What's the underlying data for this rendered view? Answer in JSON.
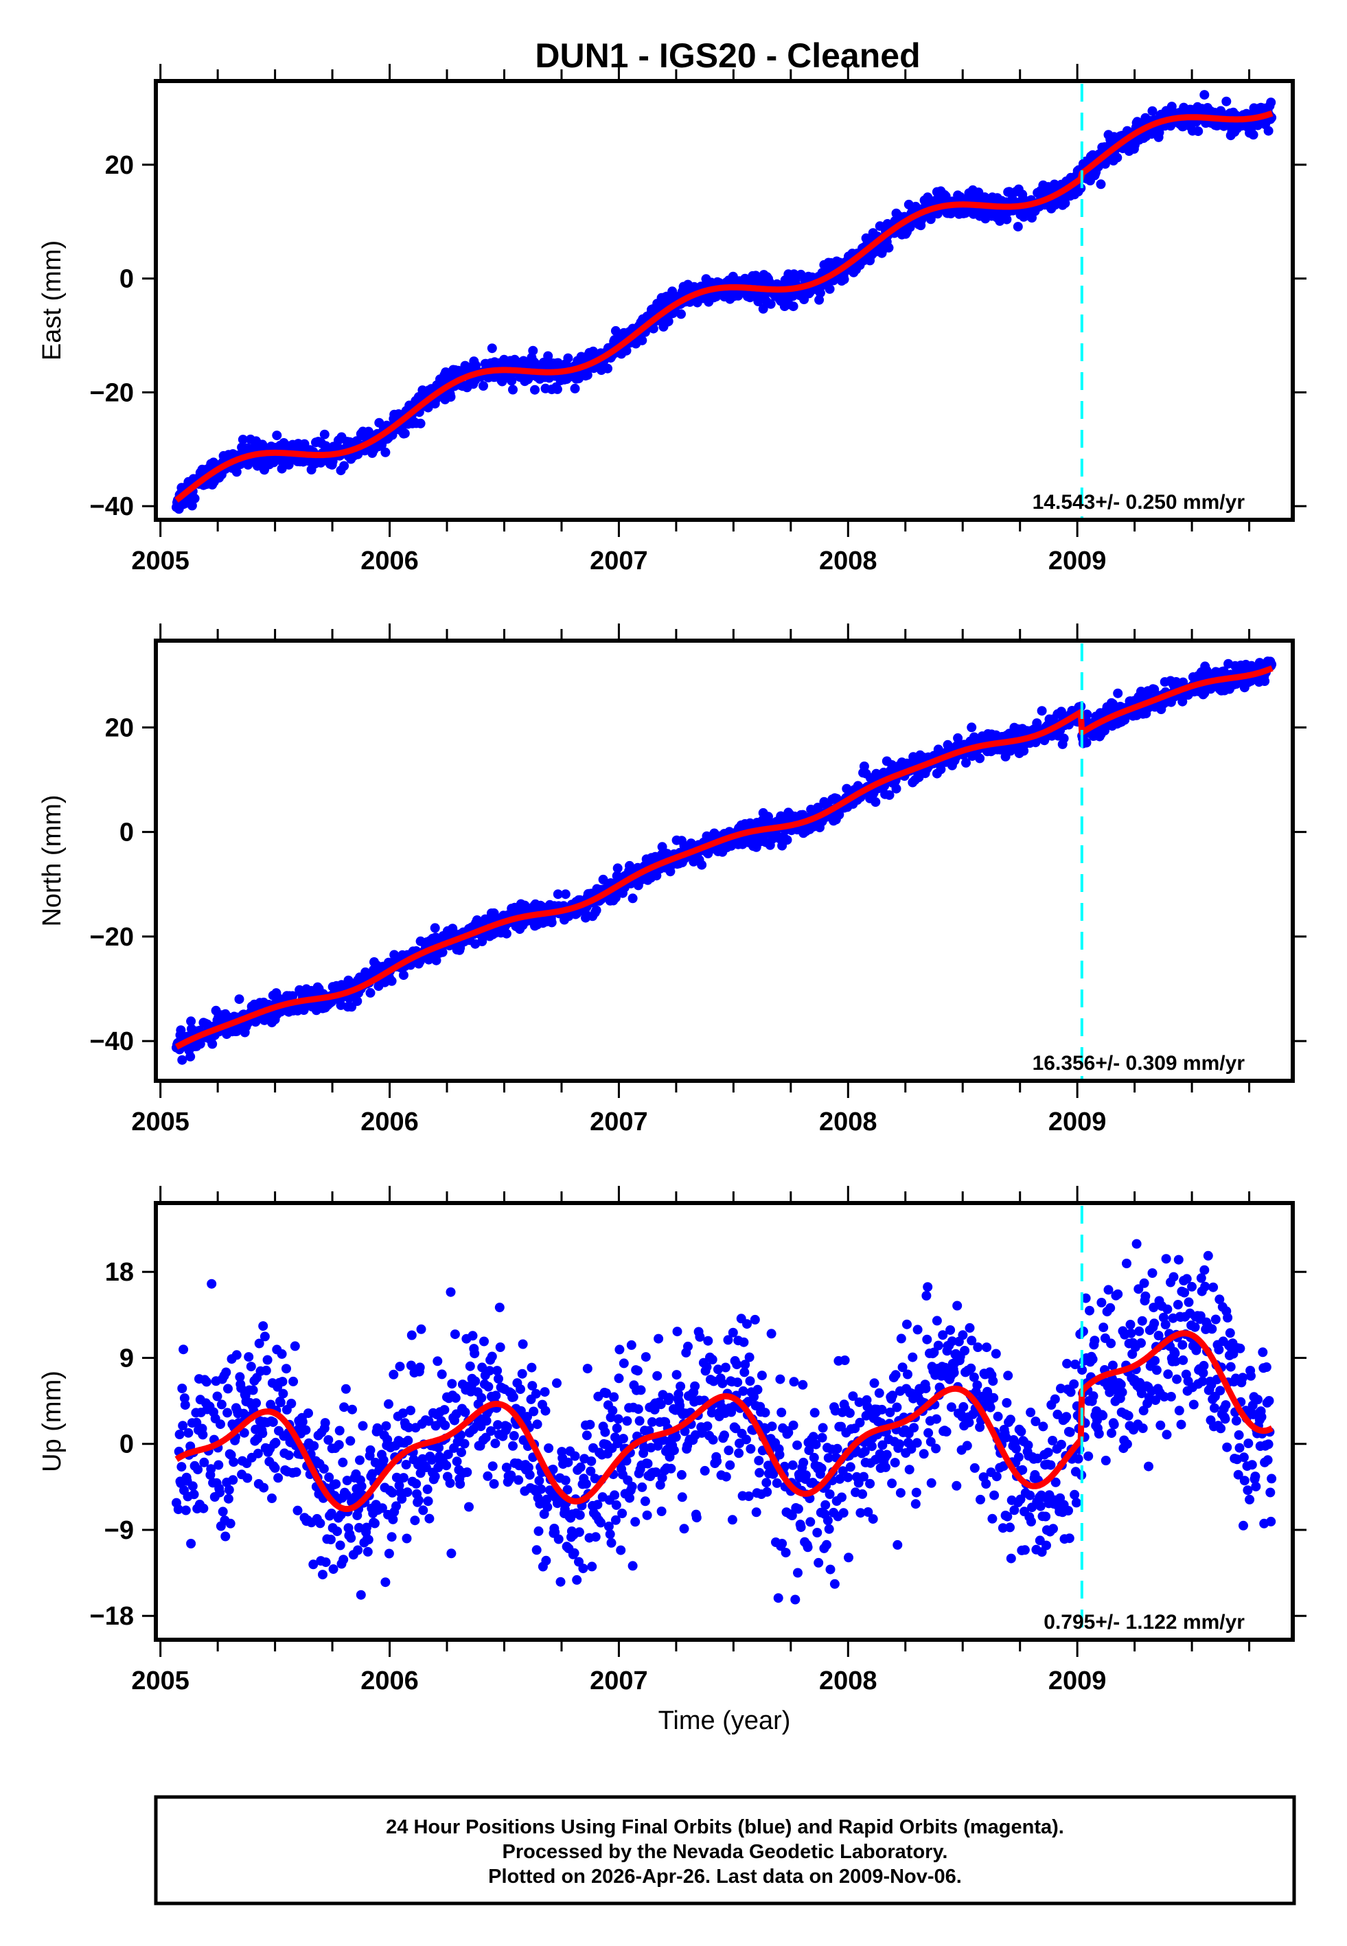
{
  "title": "DUN1  - IGS20 - Cleaned",
  "footer": {
    "lines": [
      "24 Hour Positions Using Final Orbits (blue) and Rapid Orbits (magenta).",
      "Processed by the Nevada Geodetic Laboratory.",
      "Plotted on 2026-Apr-26. Last data on 2009-Nov-06."
    ]
  },
  "colors": {
    "points": "#0000ff",
    "fit": "#ff0000",
    "event_line": "#00ffff",
    "frame": "#000000"
  },
  "chart_data": [
    {
      "type": "scatter",
      "name": "east",
      "ylabel": "East (mm)",
      "xlabel": "",
      "xlim": [
        2004.98,
        2009.94
      ],
      "ylim": [
        -42.4,
        34.7
      ],
      "xticks": [
        2005,
        2006,
        2007,
        2008,
        2009
      ],
      "xtick_labels": [
        "2005",
        "2006",
        "2007",
        "2008",
        "2009"
      ],
      "yticks": [
        -40,
        -20,
        0,
        20
      ],
      "ytick_labels": [
        "−40",
        "−20",
        "0",
        "20"
      ],
      "rate_text": "14.543+/- 0.250 mm/yr",
      "event_lines": [
        2009.02
      ],
      "data_range": [
        2005.07,
        2009.85
      ],
      "model": {
        "intercept_2005": -39.5,
        "rate": 14.543,
        "annual_sin": 2.3,
        "annual_cos": -1.6,
        "semi_sin": 0,
        "semi_cos": 0,
        "offsets": [
          {
            "t": 2009.02,
            "size": 0.8
          }
        ],
        "noise": 1.2
      },
      "fit_label": "fit"
    },
    {
      "type": "scatter",
      "name": "north",
      "ylabel": "North (mm)",
      "xlabel": "",
      "xlim": [
        2004.98,
        2009.94
      ],
      "ylim": [
        -47.6,
        36.6
      ],
      "xticks": [
        2005,
        2006,
        2007,
        2008,
        2009
      ],
      "xtick_labels": [
        "2005",
        "2006",
        "2007",
        "2008",
        "2009"
      ],
      "yticks": [
        -40,
        -20,
        0,
        20
      ],
      "ytick_labels": [
        "−40",
        "−20",
        "0",
        "20"
      ],
      "rate_text": "16.356+/- 0.309 mm/yr",
      "event_lines": [
        2009.02
      ],
      "data_range": [
        2005.07,
        2009.85
      ],
      "model": {
        "intercept_2005": -42.5,
        "rate": 16.356,
        "annual_sin": 1.0,
        "annual_cos": -0.6,
        "semi_sin": 0.3,
        "semi_cos": 0.2,
        "offsets": [
          {
            "t": 2009.02,
            "size": -4.0
          }
        ],
        "noise": 1.2
      },
      "fit_label": "fit"
    },
    {
      "type": "scatter",
      "name": "up",
      "ylabel": "Up (mm)",
      "xlabel": "Time (year)",
      "xlim": [
        2004.98,
        2009.94
      ],
      "ylim": [
        -20.5,
        25.2
      ],
      "xticks": [
        2005,
        2006,
        2007,
        2008,
        2009
      ],
      "xtick_labels": [
        "2005",
        "2006",
        "2007",
        "2008",
        "2009"
      ],
      "yticks": [
        -18,
        -9,
        0,
        9,
        18
      ],
      "ytick_labels": [
        "−18",
        "−9",
        "0",
        "9",
        "18"
      ],
      "rate_text": "0.795+/- 1.122 mm/yr",
      "event_lines": [
        2009.02
      ],
      "data_range": [
        2005.07,
        2009.85
      ],
      "model": {
        "intercept_2005": -1.8,
        "rate": 0.795,
        "annual_sin": 3.2,
        "annual_cos": -3.0,
        "semi_sin": 0.6,
        "semi_cos": 1.6,
        "offsets": [
          {
            "t": 2009.02,
            "size": 5.0
          }
        ],
        "noise": 4.5
      },
      "fit_label": "fit"
    }
  ]
}
